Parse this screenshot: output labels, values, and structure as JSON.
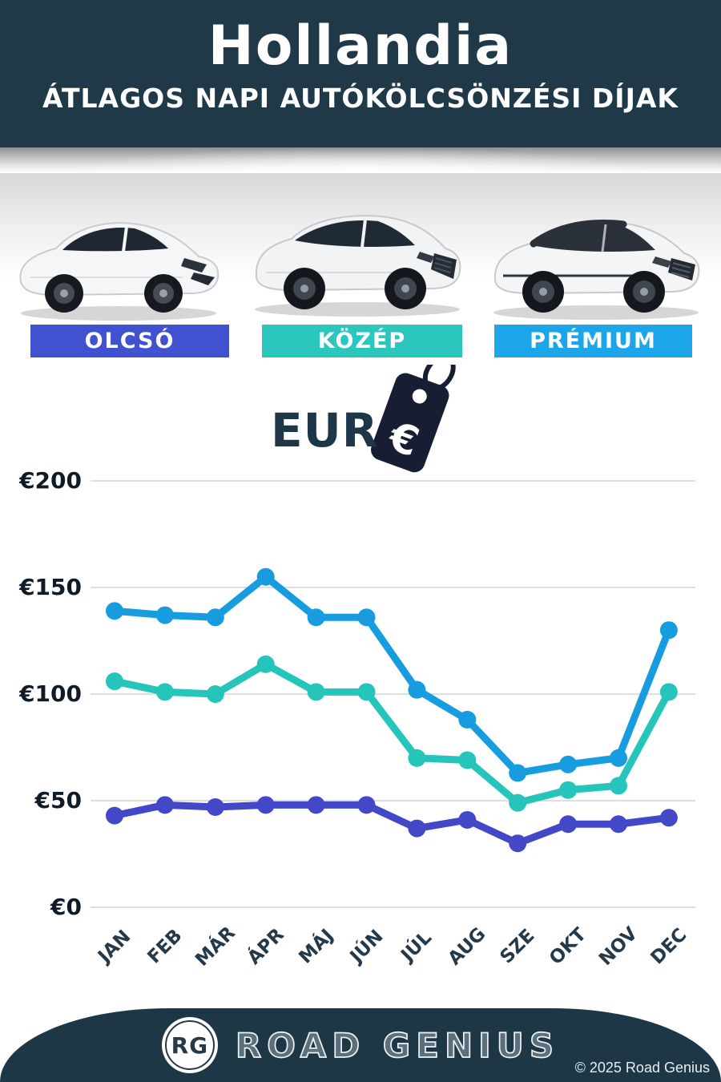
{
  "header": {
    "title": "Hollandia",
    "subtitle": "ÁTLAGOS NAPI AUTÓKÖLCSÖNZÉSI DÍJAK"
  },
  "categories": [
    {
      "label": "OLCSÓ",
      "color": "#4052d0"
    },
    {
      "label": "KÖZÉP",
      "color": "#2bc7bf"
    },
    {
      "label": "PRÉMIUM",
      "color": "#1ca6e9"
    }
  ],
  "currency": {
    "label": "EUR",
    "symbol": "€"
  },
  "chart_data": {
    "type": "line",
    "title": "Átlagos napi autókölcsönzési díjak (EUR)",
    "categories": [
      "JAN",
      "FEB",
      "MÁR",
      "ÁPR",
      "MÁJ",
      "JÚN",
      "JÚL",
      "AUG",
      "SZE",
      "OKT",
      "NOV",
      "DEC"
    ],
    "y_ticks": [
      "€200",
      "€150",
      "€100",
      "€50",
      "€0"
    ],
    "y_tick_values": [
      200,
      150,
      100,
      50,
      0
    ],
    "ylim": [
      0,
      200
    ],
    "grid": true,
    "legend_position": "none",
    "series": [
      {
        "name": "PRÉMIUM",
        "color": "#179ce0",
        "values": [
          139,
          137,
          136,
          155,
          136,
          136,
          102,
          88,
          63,
          67,
          70,
          130
        ]
      },
      {
        "name": "KÖZÉP",
        "color": "#25c5bc",
        "values": [
          106,
          101,
          100,
          114,
          101,
          101,
          70,
          69,
          49,
          55,
          57,
          101
        ]
      },
      {
        "name": "OLCSÓ",
        "color": "#4348c8",
        "values": [
          43,
          48,
          47,
          48,
          48,
          48,
          37,
          41,
          30,
          39,
          39,
          42
        ]
      }
    ]
  },
  "footer": {
    "logo_initials": "RG",
    "brand": "ROAD GENIUS",
    "copyright": "© 2025 Road Genius"
  },
  "colors": {
    "header_bg": "#1f3949",
    "grid_line": "#d2d3d5",
    "tag_dark": "#171e33",
    "eur_text": "#1d3748"
  }
}
